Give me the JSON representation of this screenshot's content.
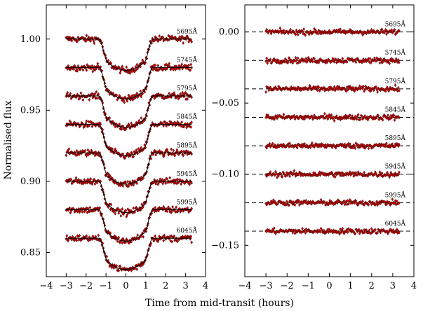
{
  "chart_data": [
    {
      "type": "scatter",
      "xlabel": "Time from mid-transit (hours)",
      "ylabel": "Normalised flux",
      "xlim": [
        -4,
        4
      ],
      "ylim": [
        0.833,
        1.024
      ],
      "xticks": [
        -4,
        -3,
        -2,
        -1,
        0,
        1,
        2,
        3,
        4
      ],
      "xtick_labels": [
        "−4",
        "−3",
        "−2",
        "−1",
        "0",
        "1",
        "2",
        "3",
        "4"
      ],
      "yticks": [
        0.85,
        0.9,
        0.95,
        1.0
      ],
      "ytick_labels": [
        "0.85",
        "0.90",
        "0.95",
        "1.00"
      ],
      "x_range": [
        -3.0,
        3.3
      ],
      "transit": {
        "t_start_hours": -1.35,
        "t_end_hours": 1.35,
        "ingress_duration_hours": 0.45,
        "depth": 0.022
      },
      "point_color": "#cc0000",
      "model_color": "#000000",
      "series": [
        {
          "name": "5695Å",
          "baseline": 1.0
        },
        {
          "name": "5745Å",
          "baseline": 0.98
        },
        {
          "name": "5795Å",
          "baseline": 0.96
        },
        {
          "name": "5845Å",
          "baseline": 0.94
        },
        {
          "name": "5895Å",
          "baseline": 0.92
        },
        {
          "name": "5945Å",
          "baseline": 0.9
        },
        {
          "name": "5995Å",
          "baseline": 0.88
        },
        {
          "name": "6045Å",
          "baseline": 0.86
        }
      ]
    },
    {
      "type": "scatter",
      "xlabel": "",
      "ylabel": "",
      "xlim": [
        -4,
        4
      ],
      "ylim": [
        -0.172,
        0.019
      ],
      "xticks": [
        -4,
        -3,
        -2,
        -1,
        0,
        1,
        2,
        3,
        4
      ],
      "xtick_labels": [
        "−4",
        "−3",
        "−2",
        "−1",
        "0",
        "1",
        "2",
        "3",
        "4"
      ],
      "yticks": [
        0.0,
        -0.05,
        -0.1,
        -0.15
      ],
      "ytick_labels": [
        "0.00",
        "−0.05",
        "−0.10",
        "−0.15"
      ],
      "x_range": [
        -3.0,
        3.3
      ],
      "point_color": "#cc0000",
      "line_style": "dashed",
      "series": [
        {
          "name": "5695Å",
          "offset": 0.0
        },
        {
          "name": "5745Å",
          "offset": -0.02
        },
        {
          "name": "5795Å",
          "offset": -0.04
        },
        {
          "name": "5845Å",
          "offset": -0.06
        },
        {
          "name": "5895Å",
          "offset": -0.08
        },
        {
          "name": "5945Å",
          "offset": -0.1
        },
        {
          "name": "5995Å",
          "offset": -0.12
        },
        {
          "name": "6045Å",
          "offset": -0.14
        }
      ]
    }
  ]
}
